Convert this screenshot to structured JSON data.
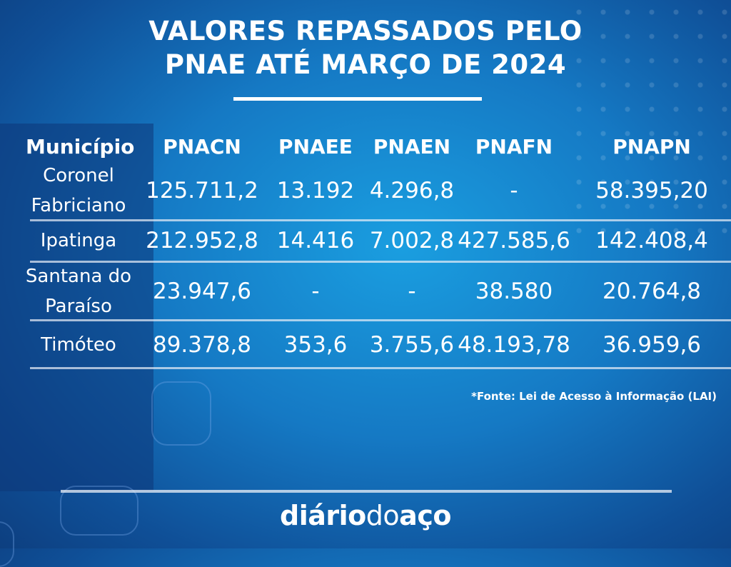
{
  "title_line1": "VALORES REPASSADOS PELO",
  "title_line2": "PNAE ATÉ MARÇO DE 2024",
  "source": "*Fonte:  Lei de Acesso à Informação (LAI)",
  "brand": {
    "part1": "diário",
    "part2": "do",
    "part3": "aço"
  },
  "chart_data": {
    "type": "table",
    "columns": [
      "Município",
      "PNACN",
      "PNAEE",
      "PNAEN",
      "PNAFN",
      "PNAPN"
    ],
    "rows": [
      {
        "municipio": [
          "Coronel",
          "Fabriciano"
        ],
        "values": [
          "125.711,2",
          "13.192",
          "4.296,8",
          "-",
          "58.395,20"
        ]
      },
      {
        "municipio": [
          "Ipatinga"
        ],
        "values": [
          "212.952,8",
          "14.416",
          "7.002,8",
          "427.585,6",
          "142.408,4"
        ]
      },
      {
        "municipio": [
          "Santana do",
          "Paraíso"
        ],
        "values": [
          "23.947,6",
          "-",
          "-",
          "38.580",
          "20.764,8"
        ]
      },
      {
        "municipio": [
          "Timóteo"
        ],
        "values": [
          "89.378,8",
          "353,6",
          "3.755,6",
          "48.193,78",
          "36.959,6"
        ]
      }
    ]
  }
}
